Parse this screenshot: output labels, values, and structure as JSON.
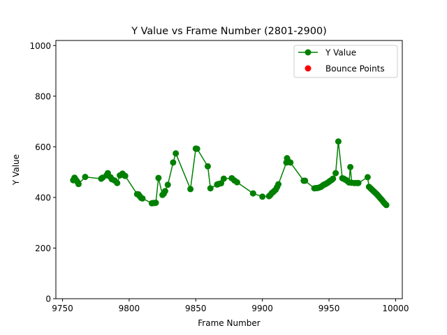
{
  "chart_data": {
    "type": "line",
    "title": "Y Value vs Frame Number (2801-2900)",
    "xlabel": "Frame Number",
    "ylabel": "Y Value",
    "xlim": [
      9745,
      10005
    ],
    "ylim": [
      0,
      1020
    ],
    "xticks": [
      9750,
      9800,
      9850,
      9900,
      9950,
      10000
    ],
    "yticks": [
      0,
      200,
      400,
      600,
      800,
      1000
    ],
    "grid": false,
    "legend_position": "top-right",
    "series": [
      {
        "name": "Y Value",
        "color": "#008000",
        "marker": "circle",
        "points": [
          [
            9758,
            468
          ],
          [
            9759,
            478
          ],
          [
            9760,
            470
          ],
          [
            9761,
            463
          ],
          [
            9762,
            453
          ],
          [
            9767,
            481
          ],
          [
            9779,
            474
          ],
          [
            9780,
            478
          ],
          [
            9783,
            487
          ],
          [
            9784,
            496
          ],
          [
            9786,
            480
          ],
          [
            9787,
            472
          ],
          [
            9789,
            467
          ],
          [
            9791,
            457
          ],
          [
            9793,
            487
          ],
          [
            9795,
            494
          ],
          [
            9796,
            488
          ],
          [
            9797,
            485
          ],
          [
            9806,
            413
          ],
          [
            9807,
            412
          ],
          [
            9808,
            405
          ],
          [
            9809,
            398
          ],
          [
            9810,
            396
          ],
          [
            9817,
            377
          ],
          [
            9818,
            378
          ],
          [
            9819,
            378
          ],
          [
            9820,
            379
          ],
          [
            9822,
            477
          ],
          [
            9825,
            410
          ],
          [
            9826,
            415
          ],
          [
            9827,
            425
          ],
          [
            9829,
            450
          ],
          [
            9833,
            538
          ],
          [
            9835,
            574
          ],
          [
            9846,
            433
          ],
          [
            9850,
            593
          ],
          [
            9851,
            592
          ],
          [
            9859,
            523
          ],
          [
            9861,
            436
          ],
          [
            9866,
            451
          ],
          [
            9867,
            453
          ],
          [
            9869,
            456
          ],
          [
            9871,
            474
          ],
          [
            9877,
            476
          ],
          [
            9879,
            467
          ],
          [
            9881,
            460
          ],
          [
            9893,
            416
          ],
          [
            9900,
            403
          ],
          [
            9905,
            405
          ],
          [
            9906,
            410
          ],
          [
            9907,
            417
          ],
          [
            9908,
            421
          ],
          [
            9909,
            426
          ],
          [
            9910,
            431
          ],
          [
            9911,
            441
          ],
          [
            9912,
            452
          ],
          [
            9918,
            538
          ],
          [
            9918.5,
            555
          ],
          [
            9919,
            546
          ],
          [
            9920,
            540
          ],
          [
            9921,
            538
          ],
          [
            9931,
            466
          ],
          [
            9932,
            466
          ],
          [
            9939,
            436
          ],
          [
            9940,
            437
          ],
          [
            9941,
            437
          ],
          [
            9942,
            438
          ],
          [
            9943,
            440
          ],
          [
            9944,
            442
          ],
          [
            9945,
            446
          ],
          [
            9946,
            450
          ],
          [
            9947,
            452
          ],
          [
            9948,
            455
          ],
          [
            9949,
            458
          ],
          [
            9950,
            462
          ],
          [
            9951,
            466
          ],
          [
            9952,
            469
          ],
          [
            9953,
            474
          ],
          [
            9955,
            496
          ],
          [
            9957,
            621
          ],
          [
            9960,
            476
          ],
          [
            9961,
            474
          ],
          [
            9962,
            471
          ],
          [
            9963,
            468
          ],
          [
            9964,
            464
          ],
          [
            9965,
            459
          ],
          [
            9966,
            520
          ],
          [
            9967,
            458
          ],
          [
            9969,
            457
          ],
          [
            9971,
            457
          ],
          [
            9972,
            457
          ],
          [
            9979,
            480
          ],
          [
            9980,
            442
          ],
          [
            9981,
            437
          ],
          [
            9982,
            432
          ],
          [
            9983,
            427
          ],
          [
            9984,
            422
          ],
          [
            9985,
            417
          ],
          [
            9986,
            412
          ],
          [
            9987,
            406
          ],
          [
            9988,
            400
          ],
          [
            9989,
            394
          ],
          [
            9990,
            388
          ],
          [
            9991,
            381
          ],
          [
            9992,
            375
          ],
          [
            9993,
            370
          ]
        ]
      },
      {
        "name": "Bounce Points",
        "color": "#ff0000",
        "marker": "circle",
        "points": []
      }
    ]
  }
}
